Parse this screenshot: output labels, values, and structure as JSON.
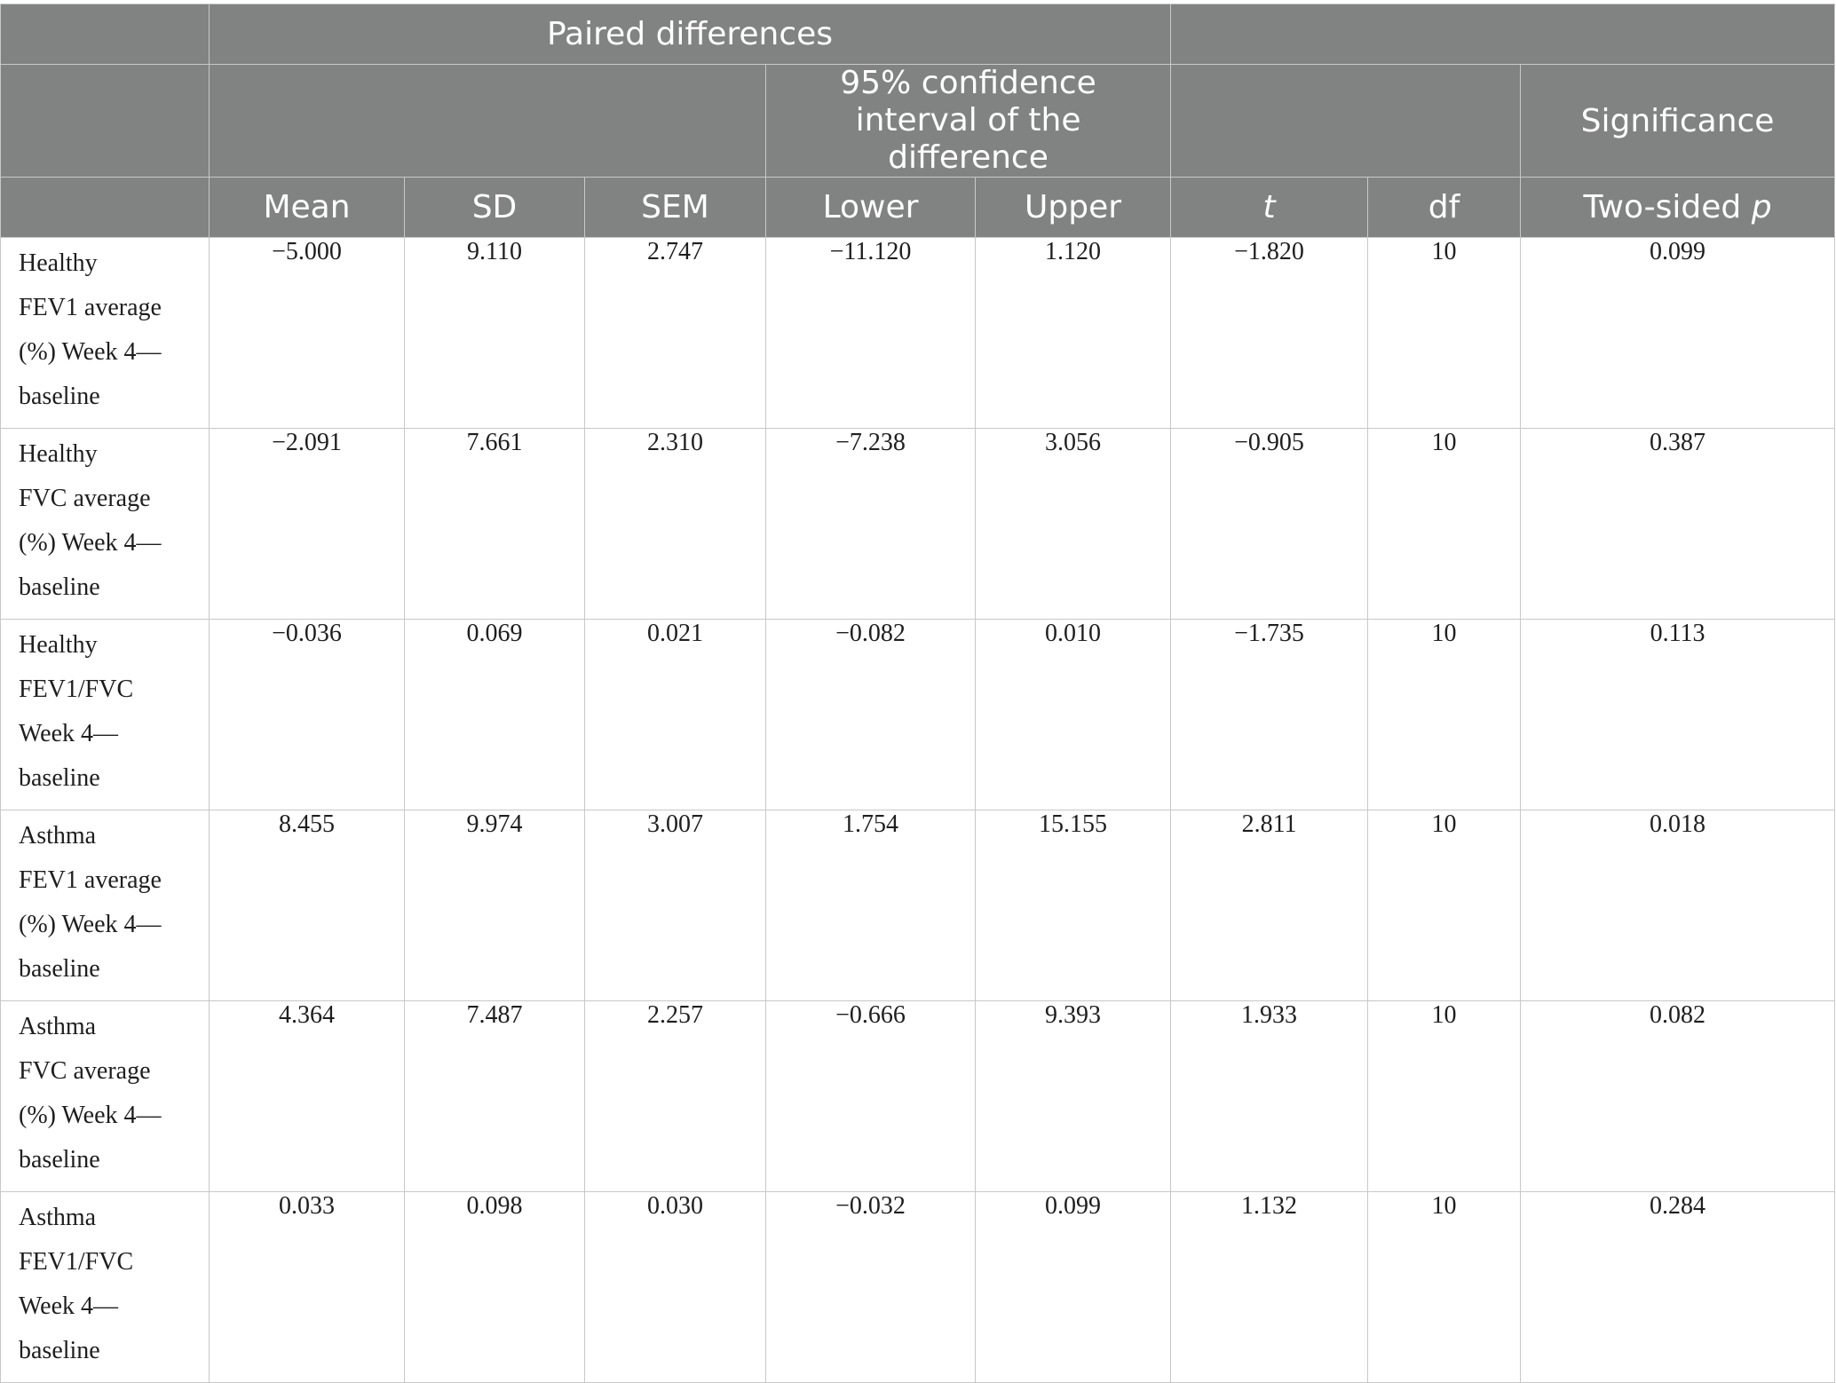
{
  "header": {
    "group_paired": "Paired differences",
    "group_ci": "95% confidence interval of the difference",
    "group_significance": "Significance",
    "columns": {
      "mean": "Mean",
      "sd": "SD",
      "sem": "SEM",
      "lower": "Lower",
      "upper": "Upper",
      "t": "t",
      "df": "df",
      "two_sided_prefix": "Two-sided ",
      "two_sided_p": "p"
    }
  },
  "rows": [
    {
      "label": "Healthy\nFEV1 average\n(%) Week 4—\nbaseline",
      "mean": "−5.000",
      "sd": "9.110",
      "sem": "2.747",
      "lower": "−11.120",
      "upper": "1.120",
      "t": "−1.820",
      "df": "10",
      "p": "0.099"
    },
    {
      "label": "Healthy\nFVC average\n(%) Week 4—\nbaseline",
      "mean": "−2.091",
      "sd": "7.661",
      "sem": "2.310",
      "lower": "−7.238",
      "upper": "3.056",
      "t": "−0.905",
      "df": "10",
      "p": "0.387"
    },
    {
      "label": "Healthy\nFEV1/FVC\nWeek 4—\nbaseline",
      "mean": "−0.036",
      "sd": "0.069",
      "sem": "0.021",
      "lower": "−0.082",
      "upper": "0.010",
      "t": "−1.735",
      "df": "10",
      "p": "0.113"
    },
    {
      "label": "Asthma\nFEV1 average\n(%) Week 4—\nbaseline",
      "mean": "8.455",
      "sd": "9.974",
      "sem": "3.007",
      "lower": "1.754",
      "upper": "15.155",
      "t": "2.811",
      "df": "10",
      "p": "0.018"
    },
    {
      "label": "Asthma\nFVC average\n(%) Week 4—\nbaseline",
      "mean": "4.364",
      "sd": "7.487",
      "sem": "2.257",
      "lower": "−0.666",
      "upper": "9.393",
      "t": "1.933",
      "df": "10",
      "p": "0.082"
    },
    {
      "label": "Asthma\nFEV1/FVC\nWeek 4—\nbaseline",
      "mean": "0.033",
      "sd": "0.098",
      "sem": "0.030",
      "lower": "−0.032",
      "upper": "0.099",
      "t": "1.132",
      "df": "10",
      "p": "0.284"
    }
  ],
  "colors": {
    "header_bg": "#808382",
    "header_text": "#ffffff",
    "grid": "#c8c8c8"
  }
}
